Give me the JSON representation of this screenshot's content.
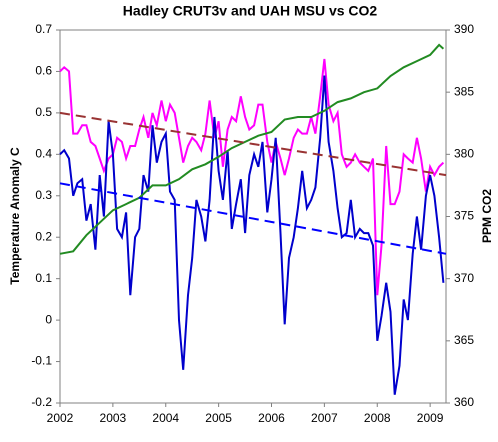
{
  "chart_data": {
    "type": "line",
    "title": "Hadley CRUT3v and UAH MSU vs CO2",
    "ylabel": "Temperature Anomaly C",
    "y2label": "PPM CO2",
    "xlim": [
      2002,
      2009.3
    ],
    "xticks": [
      2002,
      2003,
      2004,
      2005,
      2006,
      2007,
      2008,
      2009
    ],
    "ylim": [
      -0.2,
      0.7
    ],
    "yticks": [
      -0.2,
      -0.1,
      0,
      0.1,
      0.2,
      0.3,
      0.4,
      0.5,
      0.6,
      0.7
    ],
    "y2lim": [
      360,
      390
    ],
    "y2ticks": [
      360,
      365,
      370,
      375,
      380,
      385,
      390
    ],
    "grid": false,
    "series": [
      {
        "name": "Hadley CRUT3v",
        "color": "#ff00ff",
        "x": [
          2002,
          2002.08,
          2002.17,
          2002.25,
          2002.33,
          2002.42,
          2002.5,
          2002.58,
          2002.67,
          2002.75,
          2002.83,
          2002.92,
          2003,
          2003.08,
          2003.17,
          2003.25,
          2003.33,
          2003.42,
          2003.5,
          2003.58,
          2003.67,
          2003.75,
          2003.83,
          2003.92,
          2004,
          2004.08,
          2004.17,
          2004.25,
          2004.33,
          2004.42,
          2004.5,
          2004.58,
          2004.67,
          2004.75,
          2004.83,
          2004.92,
          2005,
          2005.08,
          2005.17,
          2005.25,
          2005.33,
          2005.42,
          2005.5,
          2005.58,
          2005.67,
          2005.75,
          2005.83,
          2005.92,
          2006,
          2006.08,
          2006.17,
          2006.25,
          2006.33,
          2006.42,
          2006.5,
          2006.58,
          2006.67,
          2006.75,
          2006.83,
          2006.92,
          2007,
          2007.08,
          2007.17,
          2007.25,
          2007.33,
          2007.42,
          2007.5,
          2007.58,
          2007.67,
          2007.75,
          2007.83,
          2007.92,
          2008,
          2008.08,
          2008.17,
          2008.25,
          2008.33,
          2008.42,
          2008.5,
          2008.58,
          2008.67,
          2008.75,
          2008.83,
          2008.92,
          2009,
          2009.08,
          2009.17,
          2009.25
        ],
        "values": [
          0.6,
          0.61,
          0.6,
          0.45,
          0.45,
          0.47,
          0.47,
          0.43,
          0.42,
          0.39,
          0.36,
          0.39,
          0.4,
          0.44,
          0.43,
          0.39,
          0.42,
          0.42,
          0.46,
          0.49,
          0.44,
          0.5,
          0.47,
          0.53,
          0.48,
          0.52,
          0.5,
          0.44,
          0.38,
          0.42,
          0.44,
          0.43,
          0.41,
          0.45,
          0.53,
          0.44,
          0.48,
          0.37,
          0.46,
          0.49,
          0.48,
          0.54,
          0.49,
          0.46,
          0.47,
          0.52,
          0.52,
          0.43,
          0.38,
          0.43,
          0.39,
          0.35,
          0.39,
          0.44,
          0.46,
          0.45,
          0.45,
          0.49,
          0.45,
          0.54,
          0.63,
          0.52,
          0.48,
          0.5,
          0.4,
          0.37,
          0.38,
          0.4,
          0.38,
          0.37,
          0.36,
          0.39,
          0.06,
          0.18,
          0.42,
          0.28,
          0.28,
          0.31,
          0.4,
          0.39,
          0.38,
          0.44,
          0.39,
          0.31,
          0.37,
          0.35,
          0.37,
          0.38
        ]
      },
      {
        "name": "UAH MSU",
        "color": "#0000cc",
        "x": [
          2002,
          2002.08,
          2002.17,
          2002.25,
          2002.33,
          2002.42,
          2002.5,
          2002.58,
          2002.67,
          2002.75,
          2002.83,
          2002.92,
          2003,
          2003.08,
          2003.17,
          2003.25,
          2003.33,
          2003.42,
          2003.5,
          2003.58,
          2003.67,
          2003.75,
          2003.83,
          2003.92,
          2004,
          2004.08,
          2004.17,
          2004.25,
          2004.33,
          2004.42,
          2004.5,
          2004.58,
          2004.67,
          2004.75,
          2004.83,
          2004.92,
          2005,
          2005.08,
          2005.17,
          2005.25,
          2005.33,
          2005.42,
          2005.5,
          2005.58,
          2005.67,
          2005.75,
          2005.83,
          2005.92,
          2006,
          2006.08,
          2006.17,
          2006.25,
          2006.33,
          2006.42,
          2006.5,
          2006.58,
          2006.67,
          2006.75,
          2006.83,
          2006.92,
          2007,
          2007.08,
          2007.17,
          2007.25,
          2007.33,
          2007.42,
          2007.5,
          2007.58,
          2007.67,
          2007.75,
          2007.83,
          2007.92,
          2008,
          2008.08,
          2008.17,
          2008.25,
          2008.33,
          2008.42,
          2008.5,
          2008.58,
          2008.67,
          2008.75,
          2008.83,
          2008.92,
          2009,
          2009.08,
          2009.17,
          2009.25
        ],
        "values": [
          0.4,
          0.41,
          0.39,
          0.3,
          0.33,
          0.34,
          0.24,
          0.28,
          0.17,
          0.35,
          0.25,
          0.48,
          0.4,
          0.22,
          0.2,
          0.26,
          0.06,
          0.2,
          0.22,
          0.35,
          0.31,
          0.47,
          0.38,
          0.43,
          0.45,
          0.31,
          0.29,
          0.0,
          -0.12,
          0.06,
          0.15,
          0.29,
          0.25,
          0.19,
          0.29,
          0.49,
          0.36,
          0.29,
          0.41,
          0.22,
          0.28,
          0.34,
          0.21,
          0.35,
          0.4,
          0.37,
          0.43,
          0.26,
          0.34,
          0.44,
          0.21,
          -0.01,
          0.15,
          0.2,
          0.27,
          0.36,
          0.27,
          0.29,
          0.32,
          0.44,
          0.59,
          0.43,
          0.36,
          0.27,
          0.2,
          0.21,
          0.29,
          0.2,
          0.22,
          0.21,
          0.21,
          0.18,
          -0.05,
          0.01,
          0.09,
          0.02,
          -0.18,
          -0.11,
          0.05,
          0.0,
          0.16,
          0.25,
          0.17,
          0.3,
          0.35,
          0.3,
          0.2,
          0.09
        ]
      },
      {
        "name": "CO2",
        "color": "#228b22",
        "axis": "y2",
        "x": [
          2002,
          2002.25,
          2002.5,
          2002.75,
          2003,
          2003.25,
          2003.5,
          2003.75,
          2004,
          2004.25,
          2004.5,
          2004.75,
          2005,
          2005.25,
          2005.5,
          2005.75,
          2006,
          2006.25,
          2006.5,
          2006.75,
          2007,
          2007.25,
          2007.5,
          2007.75,
          2008,
          2008.25,
          2008.5,
          2008.75,
          2009,
          2009.17,
          2009.25
        ],
        "values": [
          372.0,
          372.2,
          373.5,
          374.5,
          375.5,
          376,
          376.5,
          377.5,
          377.5,
          378,
          378.8,
          379.2,
          379.8,
          380.5,
          381,
          381.5,
          381.8,
          382.8,
          383,
          383,
          383.5,
          384.2,
          384.5,
          385,
          385.3,
          386.3,
          387,
          387.5,
          388,
          388.8,
          388.5
        ]
      },
      {
        "color": "#993333",
        "dash": true,
        "x": [
          2002,
          2009.3
        ],
        "values": [
          0.5,
          0.35
        ]
      },
      {
        "color": "#0000ff",
        "dash": true,
        "x": [
          2002,
          2009.3
        ],
        "values": [
          0.33,
          0.16
        ]
      }
    ]
  }
}
